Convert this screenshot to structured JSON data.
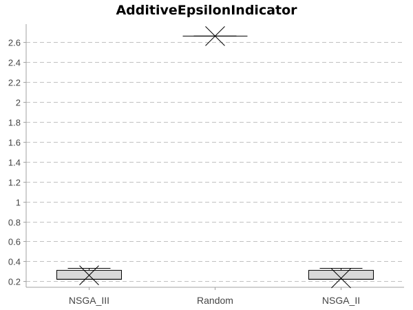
{
  "chart_data": {
    "type": "box",
    "title": "AdditiveEpsilonIndicator",
    "xlabel": "",
    "ylabel": "",
    "ylim": [
      0.14,
      2.78
    ],
    "yticks": [
      "0.2",
      "0.4",
      "0.6",
      "0.8",
      "1",
      "1.2",
      "1.4",
      "1.6",
      "1.8",
      "2",
      "2.2",
      "2.4",
      "2.6"
    ],
    "grid": true,
    "categories": [
      "NSGA_III",
      "Random",
      "NSGA_II"
    ],
    "boxes": [
      {
        "category": "NSGA_III",
        "whisker_low": 0.22,
        "q1": 0.22,
        "median": 0.22,
        "q3": 0.31,
        "whisker_high": 0.33,
        "mean": 0.26
      },
      {
        "category": "Random",
        "whisker_low": 2.66,
        "q1": 2.66,
        "median": 2.66,
        "q3": 2.66,
        "whisker_high": 2.66,
        "mean": 2.66
      },
      {
        "category": "NSGA_II",
        "whisker_low": 0.22,
        "q1": 0.22,
        "median": 0.22,
        "q3": 0.31,
        "whisker_high": 0.33,
        "mean": 0.23
      }
    ],
    "colors": {
      "box_fill": "#d9d9d9",
      "box_stroke": "#000000",
      "grid": "#c0c0c0",
      "axis": "#a0a0a0",
      "tick_text": "#444444"
    }
  }
}
